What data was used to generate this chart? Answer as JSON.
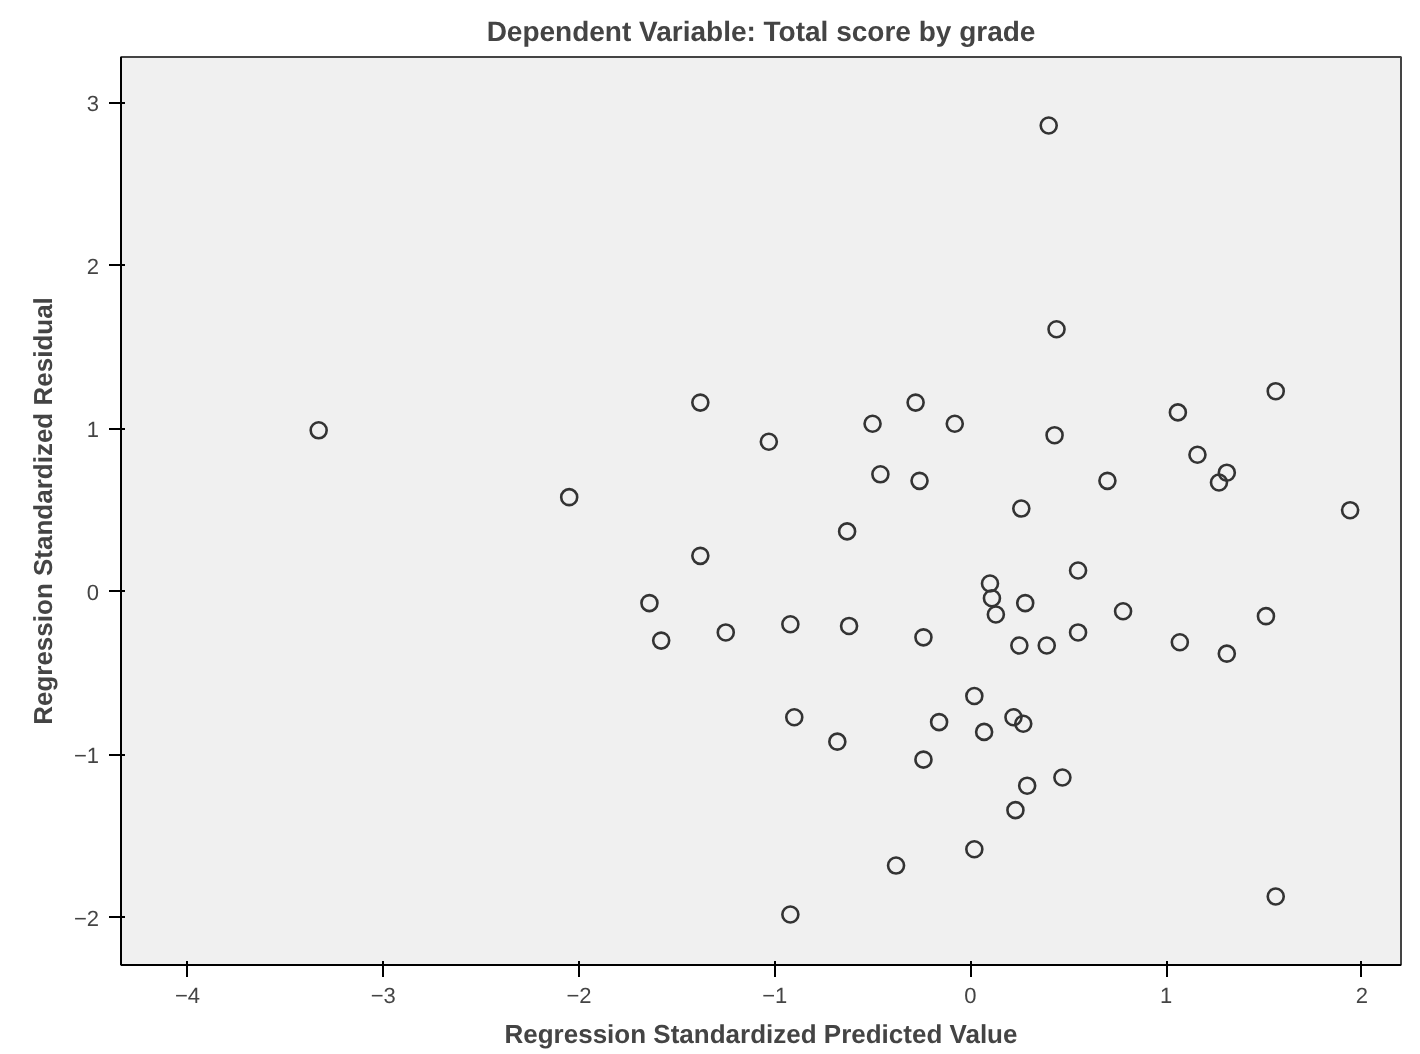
{
  "chart_data": {
    "type": "scatter",
    "title": "Dependent Variable: Total score by grade",
    "xlabel": "Regression Standardized Predicted Value",
    "ylabel": "Regression Standardized Residual",
    "x": [
      -3.33,
      -2.05,
      -1.38,
      -1.38,
      -1.64,
      -1.58,
      -1.25,
      -1.03,
      -0.92,
      -0.9,
      -0.92,
      -0.68,
      -0.63,
      -0.62,
      -0.5,
      -0.46,
      -0.28,
      -0.26,
      -0.24,
      -0.24,
      -0.16,
      -0.38,
      -0.08,
      0.02,
      0.02,
      0.07,
      0.1,
      0.11,
      0.13,
      0.22,
      0.23,
      0.27,
      0.26,
      0.28,
      0.29,
      0.25,
      0.39,
      0.4,
      0.44,
      0.43,
      0.47,
      0.55,
      0.55,
      0.7,
      0.78,
      1.06,
      1.16,
      1.07,
      1.27,
      1.31,
      1.31,
      1.51,
      1.56,
      1.56,
      1.94
    ],
    "series": [
      {
        "color": "#333333",
        "values": [
          0.99,
          0.58,
          1.16,
          0.22,
          -0.07,
          -0.3,
          -0.25,
          0.92,
          -0.2,
          -0.77,
          -1.98,
          -0.92,
          0.37,
          -0.21,
          1.03,
          0.72,
          1.16,
          0.68,
          -0.28,
          -1.03,
          -0.8,
          -1.68,
          1.03,
          -0.64,
          -1.58,
          -0.86,
          0.05,
          -0.04,
          -0.14,
          -0.77,
          -1.34,
          -0.81,
          0.51,
          -0.07,
          -1.19,
          -0.33,
          -0.33,
          2.86,
          1.61,
          0.96,
          -1.14,
          0.13,
          -0.25,
          0.68,
          -0.12,
          1.1,
          0.84,
          -0.31,
          0.67,
          0.73,
          -0.38,
          -0.15,
          1.23,
          -1.87,
          0.5
        ]
      }
    ],
    "xlim": [
      -4.34,
      2.2
    ],
    "ylim": [
      -2.29,
      3.28
    ],
    "xticks": [
      -4,
      -3,
      -2,
      -1,
      0,
      1,
      2
    ],
    "yticks": [
      -2,
      -1,
      0,
      1,
      2,
      3
    ],
    "marker": "circle"
  }
}
